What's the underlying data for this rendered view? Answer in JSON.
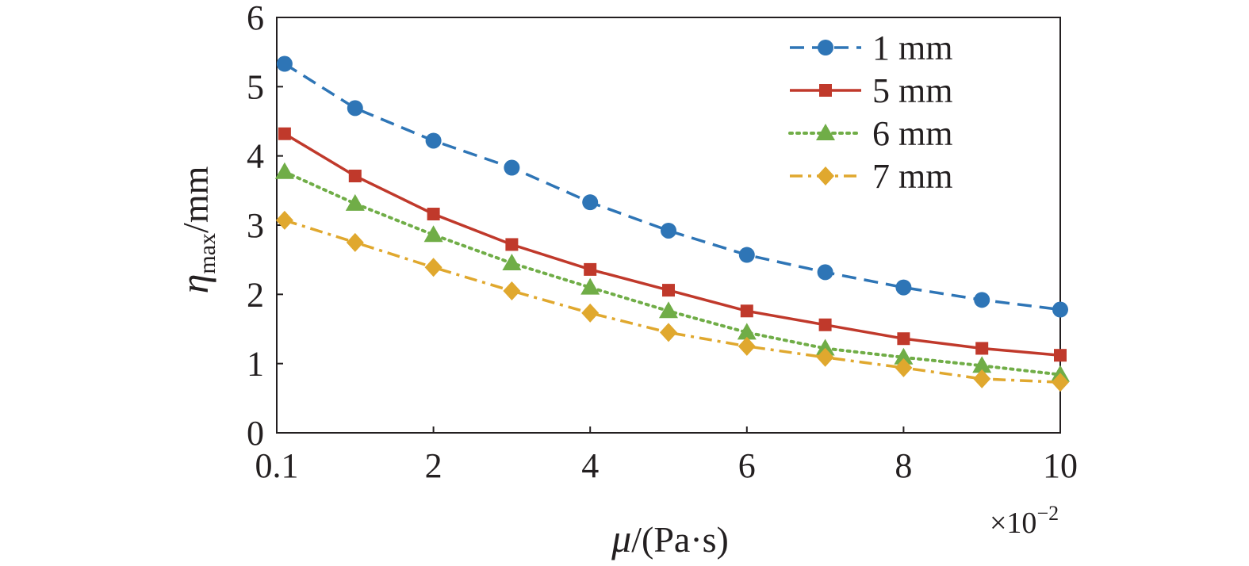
{
  "chart_data": {
    "type": "line",
    "x_tick_labels": [
      "0.1",
      "2",
      "4",
      "6",
      "8",
      "10"
    ],
    "x_tick_values": [
      0,
      2,
      4,
      6,
      8,
      10
    ],
    "x_multiplier": {
      "base": "×10",
      "exponent": "−2"
    },
    "xlabel": {
      "symbol": "μ",
      "unit": "/(Pa·s)"
    },
    "ylabel": {
      "symbol": "η",
      "subscript": "max",
      "unit": "/mm"
    },
    "xlim": [
      0,
      10
    ],
    "ylim": [
      0,
      6
    ],
    "y_ticks": [
      "0",
      "1",
      "2",
      "3",
      "4",
      "5",
      "6"
    ],
    "grid": false,
    "legend_position": "top-right",
    "x": [
      0.1,
      1,
      2,
      3,
      4,
      5,
      6,
      7,
      8,
      9,
      10
    ],
    "series": [
      {
        "name": "1 mm",
        "color": "#2e75b6",
        "marker": "circle",
        "line_style": "dashed",
        "values": [
          5.33,
          4.69,
          4.22,
          3.83,
          3.33,
          2.92,
          2.57,
          2.32,
          2.1,
          1.92,
          1.78
        ]
      },
      {
        "name": "5 mm",
        "color": "#c0392b",
        "marker": "square",
        "line_style": "solid",
        "values": [
          4.32,
          3.71,
          3.16,
          2.72,
          2.36,
          2.06,
          1.76,
          1.56,
          1.36,
          1.22,
          1.12
        ]
      },
      {
        "name": "6 mm",
        "color": "#70ad47",
        "marker": "triangle",
        "line_style": "dotted",
        "values": [
          3.77,
          3.31,
          2.86,
          2.45,
          2.1,
          1.76,
          1.45,
          1.22,
          1.09,
          0.97,
          0.84
        ]
      },
      {
        "name": "7 mm",
        "color": "#e0a82e",
        "marker": "diamond",
        "line_style": "dashdot",
        "values": [
          3.07,
          2.75,
          2.39,
          2.05,
          1.73,
          1.45,
          1.25,
          1.09,
          0.94,
          0.78,
          0.73
        ]
      }
    ]
  }
}
